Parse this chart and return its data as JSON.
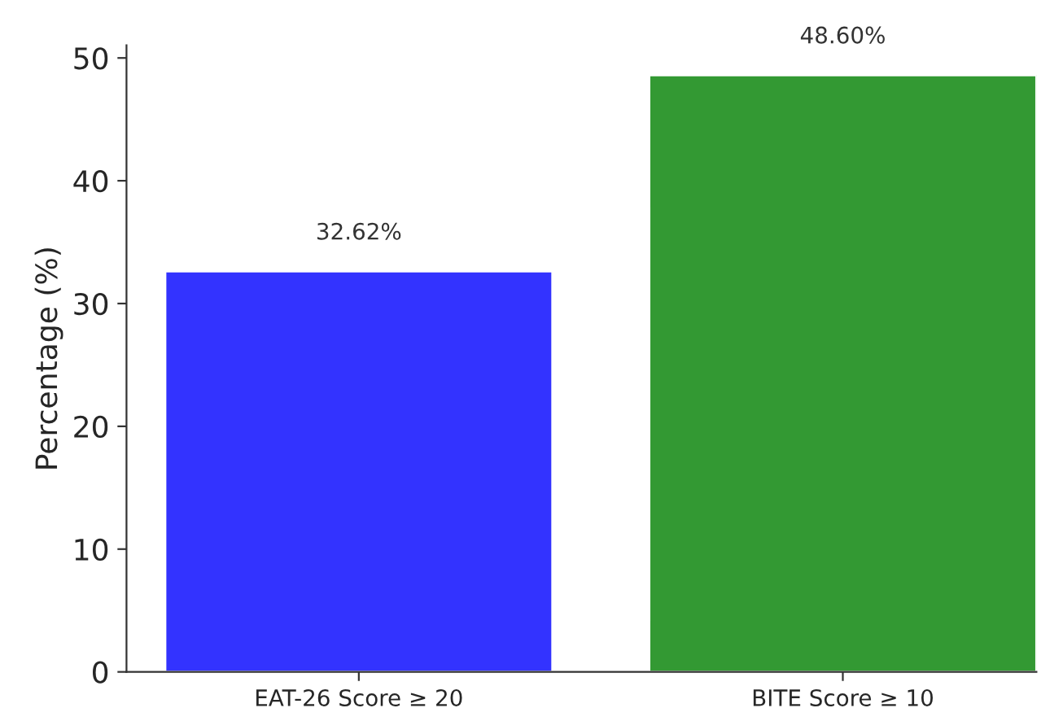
{
  "chart_data": {
    "type": "bar",
    "ylabel": "Percentage (%)",
    "categories": [
      "EAT-26 Score ≥ 20",
      "BITE Score ≥ 10"
    ],
    "values": [
      32.62,
      48.6
    ],
    "colors": [
      "#3333ff",
      "#339933"
    ],
    "value_labels": [
      "32.62%",
      "48.60%"
    ],
    "ylim": [
      0,
      51.03
    ],
    "yticks": [
      0,
      10,
      20,
      30,
      40,
      50
    ],
    "grid": false,
    "legend": false
  }
}
